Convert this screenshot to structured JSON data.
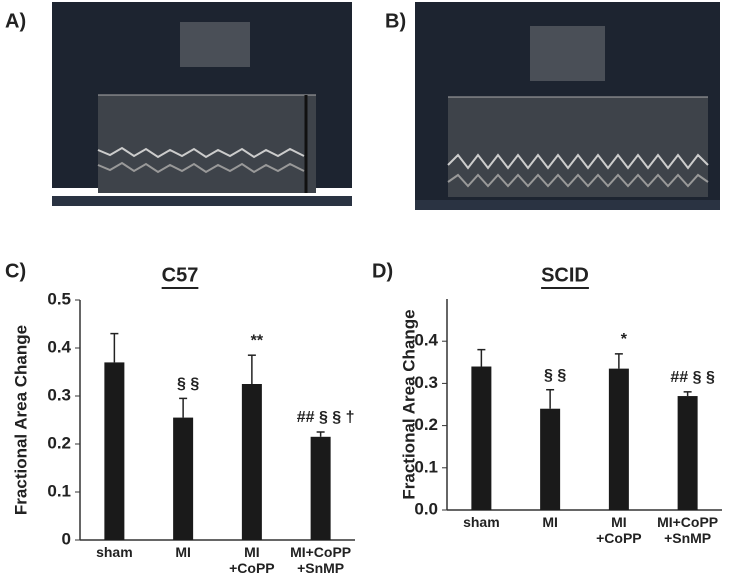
{
  "panels": {
    "a": "A)",
    "b": "B)"
  },
  "chart_data": [
    {
      "type": "bar",
      "panel": "C)",
      "title": "C57",
      "y_label": "Fractional Area Change",
      "categories": [
        "sham",
        "MI",
        "MI\n+CoPP",
        "MI+CoPP\n+SnMP"
      ],
      "values": [
        0.37,
        0.255,
        0.325,
        0.215
      ],
      "errors": [
        0.06,
        0.04,
        0.06,
        0.01
      ],
      "annotations": [
        null,
        "§ §",
        "**",
        "## § § †"
      ],
      "color": "#1a1a1a",
      "ylim": [
        0,
        0.5
      ],
      "yticks": [
        0,
        0.1,
        0.2,
        0.3,
        0.4,
        0.5
      ]
    },
    {
      "type": "bar",
      "panel": "D)",
      "title": "SCID",
      "y_label": "Fractional Area Change",
      "categories": [
        "sham",
        "MI",
        "MI\n+CoPP",
        "MI+CoPP\n+SnMP"
      ],
      "values": [
        0.34,
        0.24,
        0.335,
        0.27
      ],
      "errors": [
        0.04,
        0.045,
        0.035,
        0.01
      ],
      "annotations": [
        null,
        "§ §",
        "*",
        "## § §"
      ],
      "color": "#1a1a1a",
      "ylim": [
        0,
        0.5
      ],
      "yticks": [
        {
          "value": 0,
          "label": "0.0"
        },
        0.1,
        0.2,
        0.3,
        0.4
      ]
    }
  ]
}
